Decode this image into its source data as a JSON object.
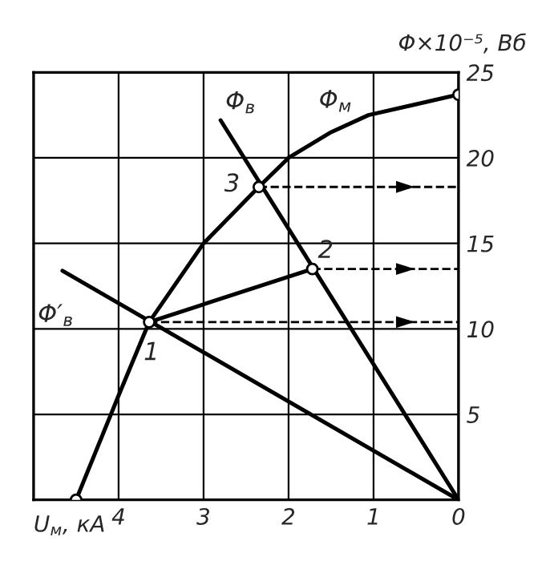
{
  "chart_data": {
    "type": "line",
    "xlabel": "U$_{м}$, кА",
    "ylabel": "Φ×10⁻⁵, Вб",
    "xlim": [
      5,
      0
    ],
    "xticks": [
      4,
      3,
      2,
      1,
      0
    ],
    "ylim": [
      0,
      25
    ],
    "yticks": [
      5,
      10,
      15,
      20,
      25
    ],
    "grid": true,
    "series": [
      {
        "type": "line",
        "color": "#000000",
        "line_style": "solid",
        "x": [
          4.5,
          4.0,
          3.64,
          3.0,
          2.35,
          2.0,
          1.5,
          1.06,
          0
        ],
        "values": [
          0,
          6.1,
          10.4,
          15.0,
          18.3,
          20.0,
          21.5,
          22.5,
          23.7
        ]
      },
      {
        "type": "line",
        "color": "#000000",
        "line_style": "solid",
        "x": [
          2.8,
          0
        ],
        "values": [
          22.2,
          0
        ]
      },
      {
        "type": "line",
        "color": "#000000",
        "line_style": "solid",
        "x": [
          4.66,
          0
        ],
        "values": [
          13.4,
          0
        ]
      },
      {
        "type": "line",
        "color": "#000000",
        "line_style": "solid",
        "x": [
          3.64,
          1.72
        ],
        "values": [
          10.4,
          13.5
        ]
      },
      {
        "type": "line",
        "color": "#000000",
        "line_style": "dashed",
        "x": [
          2.35,
          0
        ],
        "values": [
          18.3,
          18.3
        ]
      },
      {
        "type": "line",
        "color": "#000000",
        "line_style": "dashed",
        "x": [
          1.72,
          0
        ],
        "values": [
          13.5,
          13.5
        ]
      },
      {
        "type": "line",
        "color": "#000000",
        "line_style": "dashed",
        "x": [
          3.64,
          0
        ],
        "values": [
          10.4,
          10.4
        ]
      },
      {
        "type": "scatter",
        "color": "#000000",
        "marker": "circle",
        "x": [
          4.5,
          3.64,
          1.72,
          2.35,
          0
        ],
        "values": [
          0,
          10.4,
          13.5,
          18.3,
          23.7
        ]
      }
    ],
    "annotations": [
      {
        "text": "Φ$_{в}$",
        "x": 2.8,
        "y": 22.2
      },
      {
        "text": "Φ$_{м}$",
        "x": 1.5,
        "y": 21.5
      },
      {
        "text": "Φ′$_{в}$",
        "x": 4.66,
        "y": 13.4
      },
      {
        "text": "1",
        "x": 3.64,
        "y": 10.4
      },
      {
        "text": "2",
        "x": 1.72,
        "y": 13.5
      },
      {
        "text": "3",
        "x": 2.35,
        "y": 18.3
      }
    ]
  }
}
